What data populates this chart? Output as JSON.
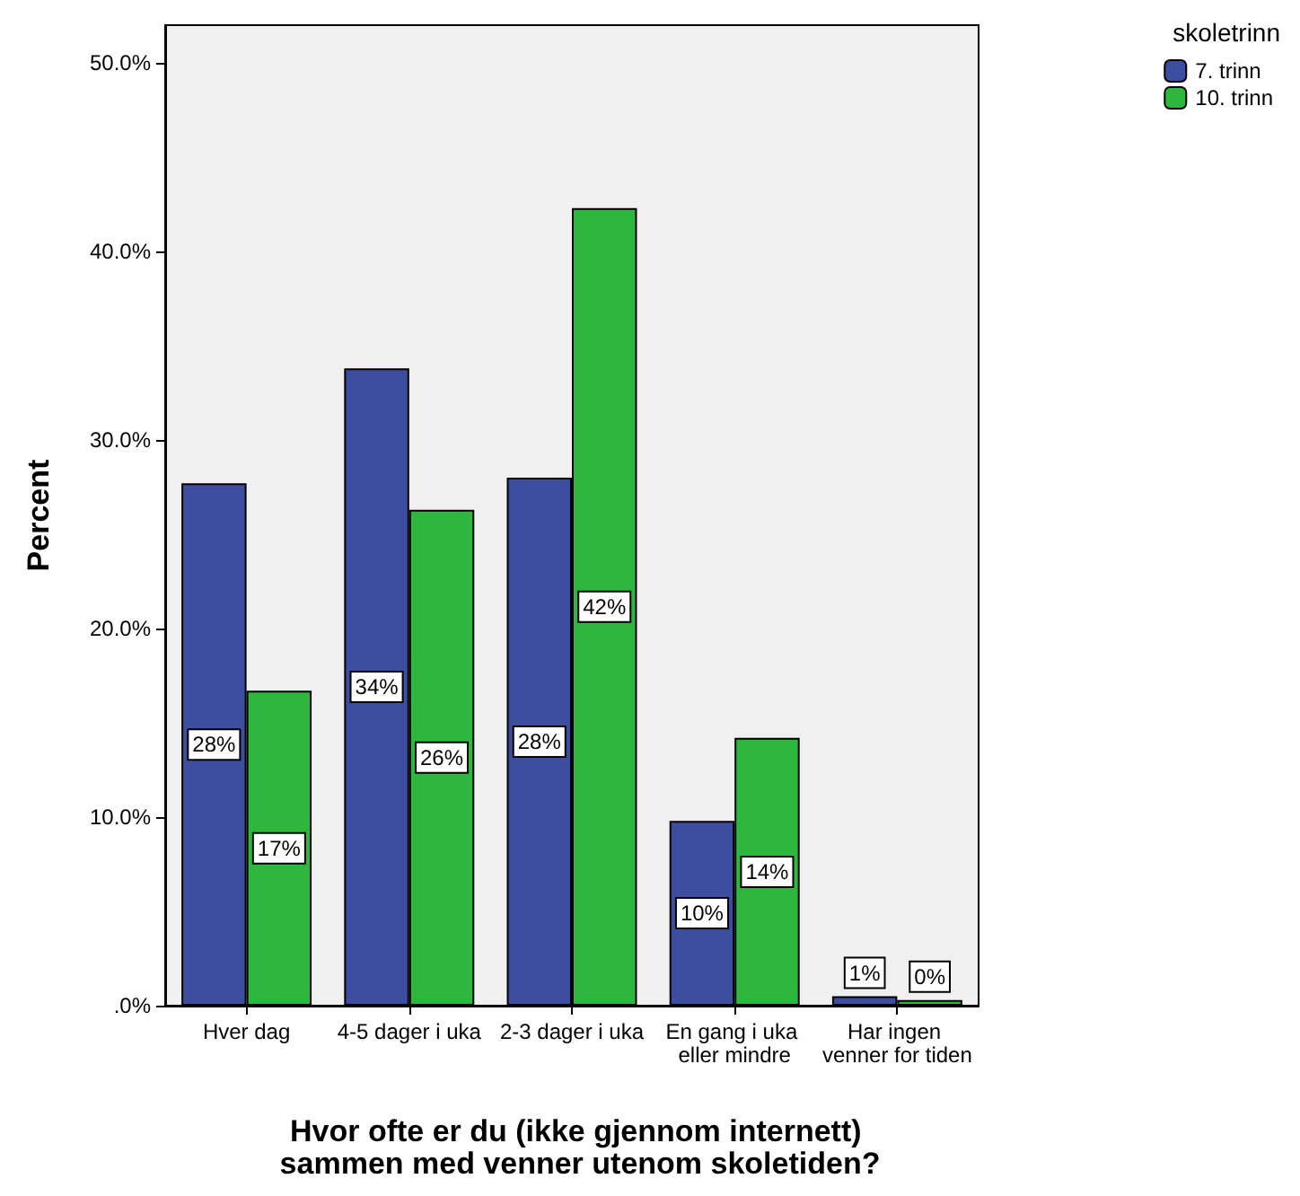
{
  "chart_data": {
    "type": "bar",
    "xlabel": "Hvor ofte er du (ikke gjennom internett) sammen med venner utenom skoletiden?",
    "ylabel": "Percent",
    "legend_title": "skoletrinn",
    "categories": [
      "Hver dag",
      "4-5 dager i uka",
      "2-3 dager i uka",
      "En gang i uka eller mindre",
      "Har ingen venner for tiden"
    ],
    "series": [
      {
        "name": "7. trinn",
        "color": "#3d4ea0",
        "values": [
          27.7,
          33.8,
          28.0,
          9.8,
          0.5
        ],
        "value_labels": [
          "28%",
          "34%",
          "28%",
          "10%",
          "1%"
        ]
      },
      {
        "name": "10. trinn",
        "color": "#2db83d",
        "values": [
          16.7,
          26.3,
          42.3,
          14.2,
          0.3
        ],
        "value_labels": [
          "17%",
          "26%",
          "42%",
          "14%",
          "0%"
        ]
      }
    ],
    "ylim": [
      0,
      52
    ],
    "yticks": [
      {
        "value": 0,
        "label": ".0%"
      },
      {
        "value": 10,
        "label": "10.0%"
      },
      {
        "value": 20,
        "label": "20.0%"
      },
      {
        "value": 30,
        "label": "30.0%"
      },
      {
        "value": 40,
        "label": "40.0%"
      },
      {
        "value": 50,
        "label": "50.0%"
      }
    ],
    "grid": false,
    "legend": "top right"
  }
}
